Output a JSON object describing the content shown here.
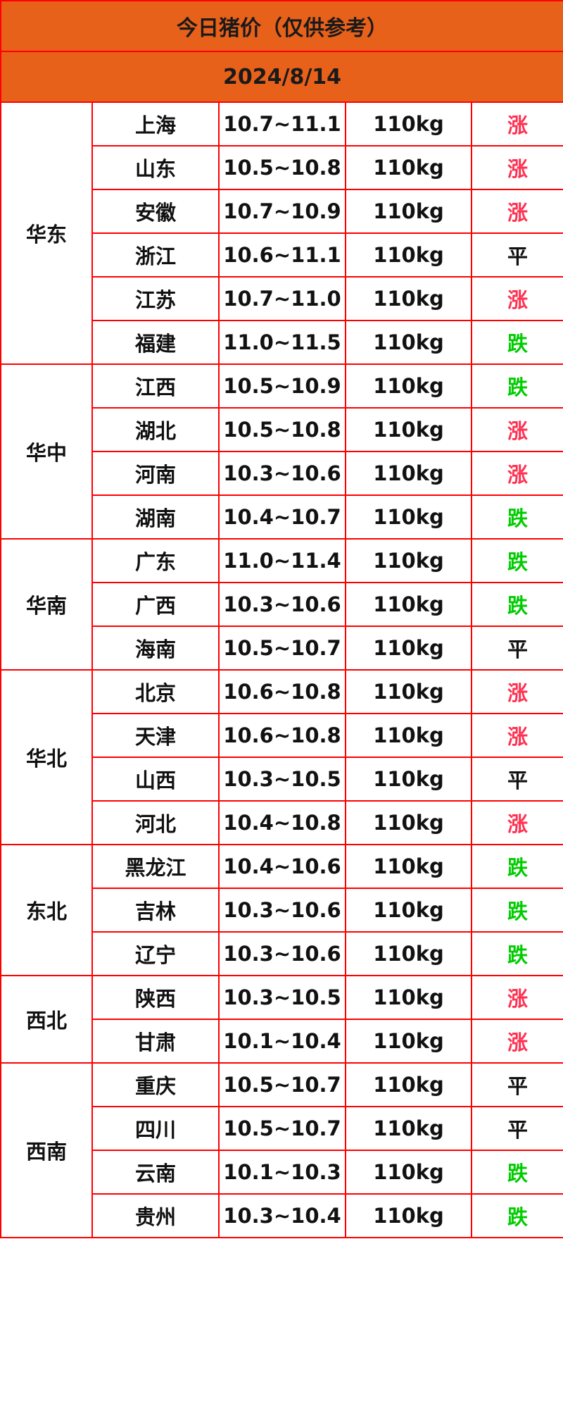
{
  "title": "今日猪价（仅供参考）",
  "date": "2024/8/14",
  "colors": {
    "header_bg": "#e8611a",
    "border": "#ff0000",
    "up": "#ff3050",
    "down": "#00cc00",
    "flat": "#111111"
  },
  "regions": [
    {
      "name": "华东",
      "rows": [
        {
          "province": "上海",
          "price": "10.7~11.1",
          "weight": "110kg",
          "trend": "涨"
        },
        {
          "province": "山东",
          "price": "10.5~10.8",
          "weight": "110kg",
          "trend": "涨"
        },
        {
          "province": "安徽",
          "price": "10.7~10.9",
          "weight": "110kg",
          "trend": "涨"
        },
        {
          "province": "浙江",
          "price": "10.6~11.1",
          "weight": "110kg",
          "trend": "平"
        },
        {
          "province": "江苏",
          "price": "10.7~11.0",
          "weight": "110kg",
          "trend": "涨"
        },
        {
          "province": "福建",
          "price": "11.0~11.5",
          "weight": "110kg",
          "trend": "跌"
        }
      ]
    },
    {
      "name": "华中",
      "rows": [
        {
          "province": "江西",
          "price": "10.5~10.9",
          "weight": "110kg",
          "trend": "跌"
        },
        {
          "province": "湖北",
          "price": "10.5~10.8",
          "weight": "110kg",
          "trend": "涨"
        },
        {
          "province": "河南",
          "price": "10.3~10.6",
          "weight": "110kg",
          "trend": "涨"
        },
        {
          "province": "湖南",
          "price": "10.4~10.7",
          "weight": "110kg",
          "trend": "跌"
        }
      ]
    },
    {
      "name": "华南",
      "rows": [
        {
          "province": "广东",
          "price": "11.0~11.4",
          "weight": "110kg",
          "trend": "跌"
        },
        {
          "province": "广西",
          "price": "10.3~10.6",
          "weight": "110kg",
          "trend": "跌"
        },
        {
          "province": "海南",
          "price": "10.5~10.7",
          "weight": "110kg",
          "trend": "平"
        }
      ]
    },
    {
      "name": "华北",
      "rows": [
        {
          "province": "北京",
          "price": "10.6~10.8",
          "weight": "110kg",
          "trend": "涨"
        },
        {
          "province": "天津",
          "price": "10.6~10.8",
          "weight": "110kg",
          "trend": "涨"
        },
        {
          "province": "山西",
          "price": "10.3~10.5",
          "weight": "110kg",
          "trend": "平"
        },
        {
          "province": "河北",
          "price": "10.4~10.8",
          "weight": "110kg",
          "trend": "涨"
        }
      ]
    },
    {
      "name": "东北",
      "rows": [
        {
          "province": "黑龙江",
          "price": "10.4~10.6",
          "weight": "110kg",
          "trend": "跌"
        },
        {
          "province": "吉林",
          "price": "10.3~10.6",
          "weight": "110kg",
          "trend": "跌"
        },
        {
          "province": "辽宁",
          "price": "10.3~10.6",
          "weight": "110kg",
          "trend": "跌"
        }
      ]
    },
    {
      "name": "西北",
      "rows": [
        {
          "province": "陕西",
          "price": "10.3~10.5",
          "weight": "110kg",
          "trend": "涨"
        },
        {
          "province": "甘肃",
          "price": "10.1~10.4",
          "weight": "110kg",
          "trend": "涨"
        }
      ]
    },
    {
      "name": "西南",
      "rows": [
        {
          "province": "重庆",
          "price": "10.5~10.7",
          "weight": "110kg",
          "trend": "平"
        },
        {
          "province": "四川",
          "price": "10.5~10.7",
          "weight": "110kg",
          "trend": "平"
        },
        {
          "province": "云南",
          "price": "10.1~10.3",
          "weight": "110kg",
          "trend": "跌"
        },
        {
          "province": "贵州",
          "price": "10.3~10.4",
          "weight": "110kg",
          "trend": "跌"
        }
      ]
    }
  ]
}
